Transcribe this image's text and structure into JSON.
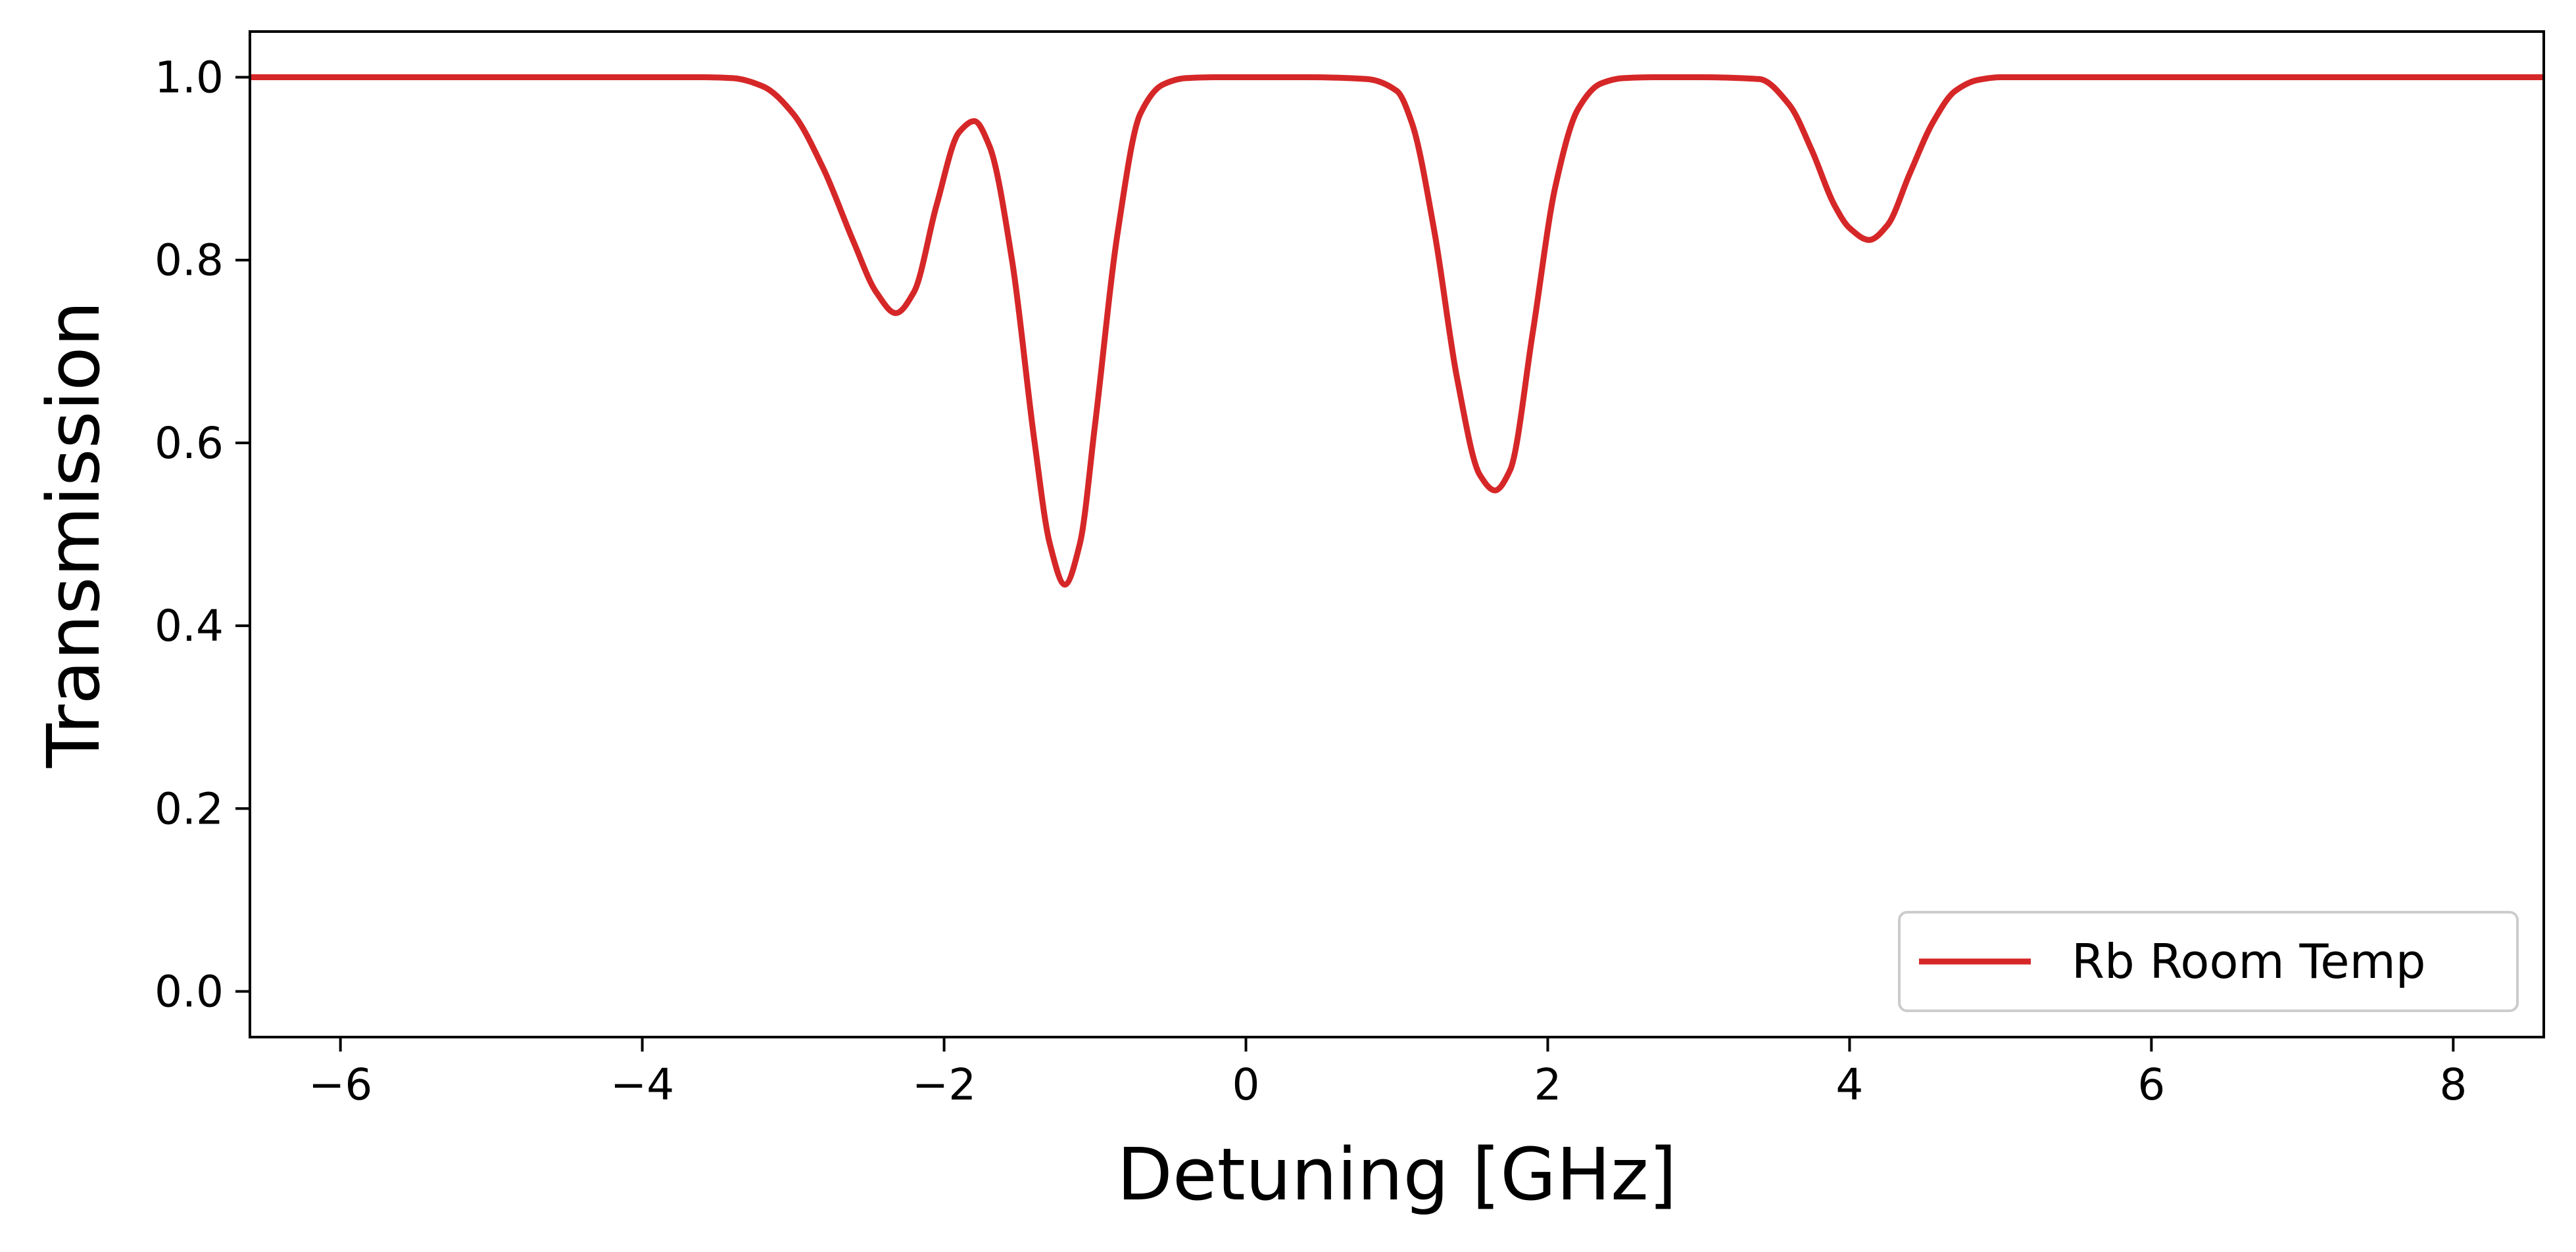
{
  "chart_data": {
    "type": "line",
    "xlabel": "Detuning [GHz]",
    "ylabel": "Transmission",
    "xlim": [
      -6.6,
      8.6
    ],
    "ylim": [
      -0.05,
      1.05
    ],
    "xticks": [
      {
        "value": -6,
        "label": "−6"
      },
      {
        "value": -4,
        "label": "−4"
      },
      {
        "value": -2,
        "label": "−2"
      },
      {
        "value": 0,
        "label": "0"
      },
      {
        "value": 2,
        "label": "2"
      },
      {
        "value": 4,
        "label": "4"
      },
      {
        "value": 6,
        "label": "6"
      },
      {
        "value": 8,
        "label": "8"
      }
    ],
    "yticks": [
      {
        "value": 0.0,
        "label": "0.0"
      },
      {
        "value": 0.2,
        "label": "0.2"
      },
      {
        "value": 0.4,
        "label": "0.4"
      },
      {
        "value": 0.6,
        "label": "0.6"
      },
      {
        "value": 0.8,
        "label": "0.8"
      },
      {
        "value": 1.0,
        "label": "1.0"
      }
    ],
    "grid": false,
    "legend_position": "bottom-right",
    "series": [
      {
        "name": "Rb Room Temp",
        "color": "#d62728",
        "x": [
          -6.6,
          -3.6,
          -3.4,
          -3.2,
          -3.0,
          -2.8,
          -2.6,
          -2.45,
          -2.32,
          -2.2,
          -2.05,
          -1.9,
          -1.8,
          -1.7,
          -1.55,
          -1.4,
          -1.3,
          -1.2,
          -1.1,
          -1.0,
          -0.85,
          -0.7,
          -0.55,
          -0.4,
          -0.2,
          0.0,
          0.4,
          0.8,
          1.0,
          1.1,
          1.25,
          1.4,
          1.55,
          1.65,
          1.75,
          1.9,
          2.05,
          2.2,
          2.35,
          2.5,
          2.7,
          3.0,
          3.4,
          3.6,
          3.75,
          3.9,
          4.0,
          4.13,
          4.25,
          4.4,
          4.55,
          4.7,
          4.85,
          5.0,
          5.3,
          6.0,
          8.6
        ],
        "y": [
          1.0,
          1.0,
          0.999,
          0.99,
          0.96,
          0.9,
          0.82,
          0.765,
          0.742,
          0.765,
          0.86,
          0.94,
          0.952,
          0.925,
          0.8,
          0.6,
          0.49,
          0.445,
          0.49,
          0.62,
          0.83,
          0.96,
          0.992,
          0.999,
          1.0,
          1.0,
          1.0,
          0.998,
          0.985,
          0.95,
          0.83,
          0.67,
          0.565,
          0.548,
          0.57,
          0.72,
          0.88,
          0.965,
          0.993,
          0.999,
          1.0,
          1.0,
          0.998,
          0.97,
          0.92,
          0.86,
          0.835,
          0.822,
          0.838,
          0.895,
          0.95,
          0.985,
          0.997,
          1.0,
          1.0,
          1.0,
          1.0
        ]
      }
    ]
  }
}
